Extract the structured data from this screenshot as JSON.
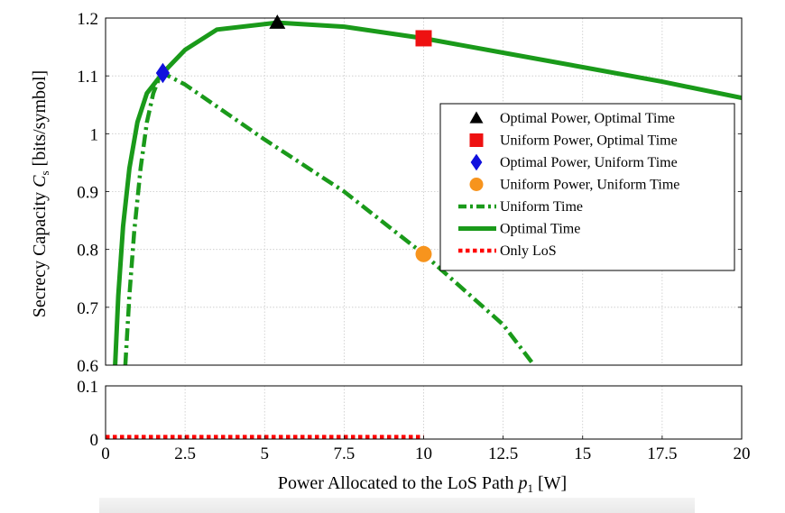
{
  "chart_data": {
    "type": "line",
    "xlabel_text": "Power Allocated to the LoS Path ",
    "xlabel_var": "p",
    "xlabel_sub": "1",
    "xlabel_unit": " [W]",
    "ylabel_text": "Secrecy Capacity ",
    "ylabel_var": "C",
    "ylabel_sub": "s",
    "ylabel_unit": " [bits/symbol]",
    "xlim": [
      0,
      20
    ],
    "x_ticks": [
      "0",
      "2.5",
      "5",
      "7.5",
      "10",
      "12.5",
      "15",
      "17.5",
      "20"
    ],
    "grid": true,
    "panels": [
      {
        "name": "upper",
        "ylim": [
          0.6,
          1.2
        ],
        "y_ticks": [
          "0.6",
          "0.7",
          "0.8",
          "0.9",
          "1",
          "1.1",
          "1.2"
        ]
      },
      {
        "name": "lower",
        "ylim": [
          0,
          0.1
        ],
        "y_ticks": [
          "0",
          "0.1"
        ]
      }
    ],
    "legend_position": "right",
    "series": [
      {
        "name": "Optimal Power, Optimal Time",
        "kind": "marker",
        "marker": "triangle",
        "color": "#000000",
        "panel": "upper",
        "points": [
          [
            5.4,
            1.192
          ]
        ]
      },
      {
        "name": "Uniform Power, Optimal Time",
        "kind": "marker",
        "marker": "square",
        "color": "#ee1111",
        "panel": "upper",
        "points": [
          [
            10,
            1.165
          ]
        ]
      },
      {
        "name": "Optimal Power, Uniform Time",
        "kind": "marker",
        "marker": "diamond",
        "color": "#1111dd",
        "panel": "upper",
        "points": [
          [
            1.8,
            1.105
          ]
        ]
      },
      {
        "name": "Uniform Power, Uniform Time",
        "kind": "marker",
        "marker": "circle",
        "color": "#f7941d",
        "panel": "upper",
        "points": [
          [
            10,
            0.792
          ]
        ]
      },
      {
        "name": "Uniform Time",
        "kind": "line",
        "style": "dashdot",
        "color": "#1a9a1a",
        "panel": "upper",
        "points": [
          [
            0.62,
            0.6
          ],
          [
            0.75,
            0.72
          ],
          [
            0.9,
            0.83
          ],
          [
            1.1,
            0.94
          ],
          [
            1.3,
            1.02
          ],
          [
            1.5,
            1.07
          ],
          [
            1.7,
            1.098
          ],
          [
            1.8,
            1.105
          ],
          [
            2.5,
            1.085
          ],
          [
            5,
            0.99
          ],
          [
            7.5,
            0.9
          ],
          [
            10,
            0.792
          ],
          [
            12.5,
            0.67
          ],
          [
            13.4,
            0.605
          ]
        ]
      },
      {
        "name": "Optimal Time",
        "kind": "line",
        "style": "solid",
        "color": "#1a9a1a",
        "panel": "upper",
        "points": [
          [
            0.3,
            0.6
          ],
          [
            0.4,
            0.72
          ],
          [
            0.55,
            0.84
          ],
          [
            0.75,
            0.94
          ],
          [
            1.0,
            1.02
          ],
          [
            1.3,
            1.07
          ],
          [
            1.8,
            1.105
          ],
          [
            2.5,
            1.145
          ],
          [
            3.5,
            1.18
          ],
          [
            5.4,
            1.192
          ],
          [
            7.5,
            1.185
          ],
          [
            10,
            1.165
          ],
          [
            12.5,
            1.14
          ],
          [
            15,
            1.115
          ],
          [
            17.5,
            1.09
          ],
          [
            20,
            1.062
          ]
        ]
      },
      {
        "name": "Only LoS",
        "kind": "line",
        "style": "dotted",
        "color": "#ff0000",
        "panel": "lower",
        "points": [
          [
            0,
            0.004
          ],
          [
            10,
            0.004
          ]
        ]
      }
    ]
  }
}
